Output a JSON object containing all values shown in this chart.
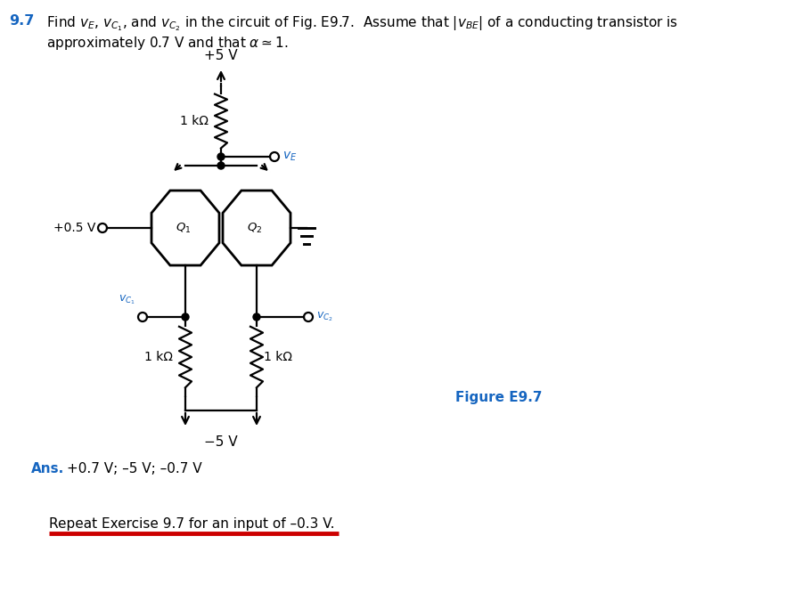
{
  "blue_color": "#1565c0",
  "black_color": "#000000",
  "red_color": "#cc0000",
  "bg_color": "#ffffff",
  "vcc": "+5 V",
  "vee": "−5 V",
  "vin": "+0.5 V",
  "r_top": "1 kΩ",
  "r_bot_left": "1 kΩ",
  "r_bot_right": "1 kΩ",
  "q1_label": "$Q_1$",
  "q2_label": "$Q_2$",
  "ve_label": "$v_E$",
  "vc1_label": "$v_{C_1}$",
  "vc2_label": "$v_{C_2}$",
  "figure_label": "Figure E9.7",
  "header_num": "9.7",
  "header_line1": "Find $v_E$, $v_{C_1}$, and $v_{C_2}$ in the circuit of Fig. E9.7.  Assume that $|v_{BE}|$ of a conducting transistor is",
  "header_line2": "approximately 0.7 V and that $\\alpha \\simeq 1$.",
  "ans_label": "Ans.",
  "ans_values": "+0.7 V; –5 V; –0.7 V",
  "repeat_text": "Repeat Exercise 9.7 for an input of –0.3 V."
}
